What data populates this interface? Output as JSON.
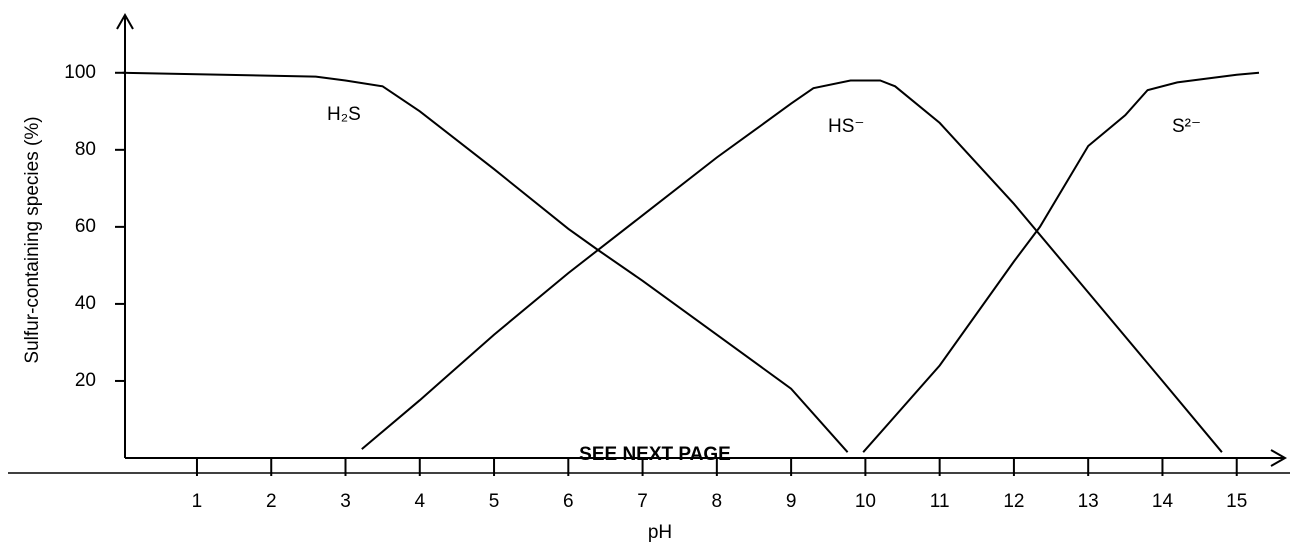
{
  "chart_data": {
    "type": "line",
    "ylabel": "Sulfur-containing species (%)",
    "xlabel": "pH",
    "footer": "SEE NEXT PAGE",
    "xlim": [
      0,
      15.65
    ],
    "ylim": [
      0,
      115
    ],
    "xticks": [
      1,
      2,
      3,
      4,
      5,
      6,
      7,
      8,
      9,
      10,
      11,
      12,
      13,
      14,
      15
    ],
    "yticks": [
      20,
      40,
      60,
      80,
      100
    ],
    "color": "#000000",
    "series": [
      {
        "name": "H₂S",
        "x": [
          0,
          2.6,
          3,
          3.5,
          4,
          5,
          6,
          6.4,
          7,
          8,
          9,
          9.76
        ],
        "values": [
          100,
          99,
          98,
          96.5,
          90,
          75,
          59.5,
          54,
          46,
          32,
          18,
          1.5
        ]
      },
      {
        "name": "HS⁻",
        "x": [
          3.22,
          4,
          5,
          6,
          7,
          8,
          8.5,
          9,
          9.3,
          9.8,
          10.2,
          10.4,
          11,
          12,
          13,
          14,
          14.8
        ],
        "values": [
          2.3,
          15,
          32,
          48,
          63,
          78,
          85,
          92,
          96,
          98,
          98,
          96.5,
          87,
          66,
          43,
          20,
          1.5
        ]
      },
      {
        "name": "S²⁻",
        "x": [
          9.97,
          11,
          12,
          12.35,
          13,
          13.5,
          13.8,
          14.2,
          15,
          15.3
        ],
        "values": [
          1.5,
          24,
          51,
          60,
          81,
          89,
          95.5,
          97.5,
          99.5,
          100
        ]
      }
    ]
  }
}
